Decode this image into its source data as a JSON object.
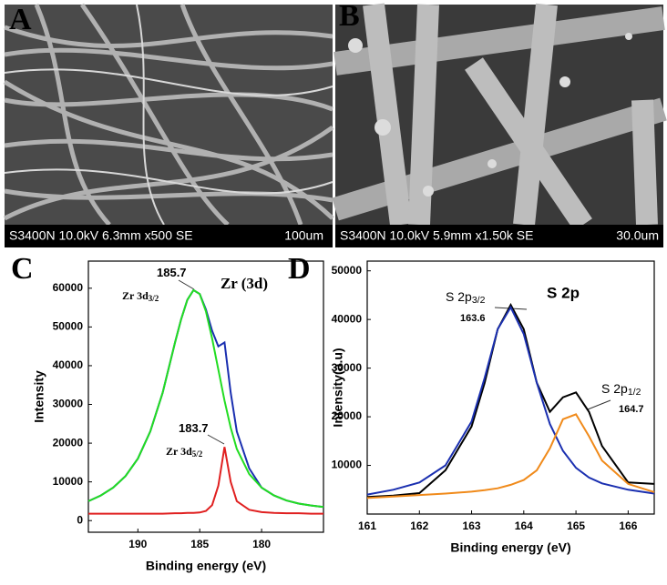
{
  "images": [
    {
      "label": "A",
      "caption": "S3400N 10.0kV 6.3mm x500 SE",
      "scale": "100um"
    },
    {
      "label": "B",
      "caption": "S3400N 10.0kV 5.9mm x1.50k SE",
      "scale": "30.0um"
    }
  ],
  "chart_data": [
    {
      "type": "line",
      "panel_label": "C",
      "title": "Zr (3d)",
      "x_label": "Binding energy (eV)",
      "y_label": "Intensity",
      "x": [
        194,
        193,
        192,
        191,
        190,
        189,
        188,
        187,
        186.5,
        186,
        185.5,
        185,
        184.5,
        184,
        183.5,
        183,
        182.5,
        182,
        181,
        180,
        179,
        178,
        177,
        176,
        175
      ],
      "series": [
        {
          "color": "#1a2fb0",
          "values": [
            5000,
            6500,
            8500,
            11500,
            16000,
            23000,
            33000,
            46000,
            52000,
            57000,
            59500,
            58500,
            54500,
            49000,
            45000,
            46000,
            33000,
            23000,
            13500,
            8500,
            6500,
            5200,
            4400,
            3900,
            3500
          ]
        },
        {
          "color": "#22dd22",
          "values": [
            5000,
            6500,
            8500,
            11500,
            16000,
            23000,
            33000,
            46000,
            52000,
            57000,
            59500,
            58500,
            54000,
            47000,
            39000,
            31000,
            24000,
            18500,
            12000,
            8500,
            6500,
            5200,
            4400,
            3900,
            3500
          ]
        },
        {
          "color": "#e02020",
          "values": [
            1800,
            1800,
            1800,
            1800,
            1800,
            1800,
            1800,
            1900,
            1900,
            2000,
            2000,
            2100,
            2500,
            4000,
            9000,
            19000,
            10000,
            5000,
            2800,
            2200,
            2000,
            1900,
            1900,
            1800,
            1800
          ]
        }
      ],
      "annotations": [
        {
          "text": "185.7"
        },
        {
          "text": "Zr 3d",
          "sub": "3/2"
        },
        {
          "text": "183.7"
        },
        {
          "text": "Zr 3d",
          "sub": "5/2"
        }
      ],
      "xlim": [
        194,
        175
      ],
      "ylim": [
        -3000,
        67000
      ],
      "xticks": [
        190,
        185,
        180
      ],
      "yticks": [
        0,
        10000,
        20000,
        30000,
        40000,
        50000,
        60000
      ]
    },
    {
      "type": "line",
      "panel_label": "D",
      "title": "S 2p",
      "x_label": "Binding energy (eV)",
      "y_label": "Intensity(a.u)",
      "x": [
        161,
        161.5,
        162,
        162.5,
        163,
        163.25,
        163.5,
        163.75,
        164,
        164.25,
        164.5,
        164.75,
        165,
        165.25,
        165.5,
        166,
        166.5
      ],
      "series": [
        {
          "color": "#000000",
          "values": [
            3500,
            3800,
            4300,
            9000,
            18000,
            27000,
            38000,
            43000,
            38000,
            27000,
            21000,
            24000,
            25000,
            21000,
            14000,
            6500,
            6200
          ]
        },
        {
          "color": "#1a2fb0",
          "values": [
            4000,
            5000,
            6500,
            10000,
            19000,
            28000,
            38000,
            42500,
            37000,
            27000,
            18500,
            13000,
            9500,
            7500,
            6300,
            5000,
            4200
          ]
        },
        {
          "color": "#f08a1a",
          "values": [
            3300,
            3600,
            3900,
            4200,
            4600,
            4900,
            5300,
            6000,
            7000,
            9000,
            13500,
            19500,
            20500,
            16000,
            11000,
            6200,
            4500
          ]
        }
      ],
      "annotations": [
        {
          "text": "S 2p",
          "sub": "3/2"
        },
        {
          "text": "163.6"
        },
        {
          "text": "S 2p",
          "sub": "1/2"
        },
        {
          "text": "164.7"
        }
      ],
      "xlim": [
        161,
        166.5
      ],
      "ylim": [
        0,
        52000
      ],
      "xticks": [
        161,
        162,
        163,
        164,
        165,
        166
      ],
      "yticks": [
        10000,
        20000,
        30000,
        40000,
        50000
      ]
    }
  ]
}
